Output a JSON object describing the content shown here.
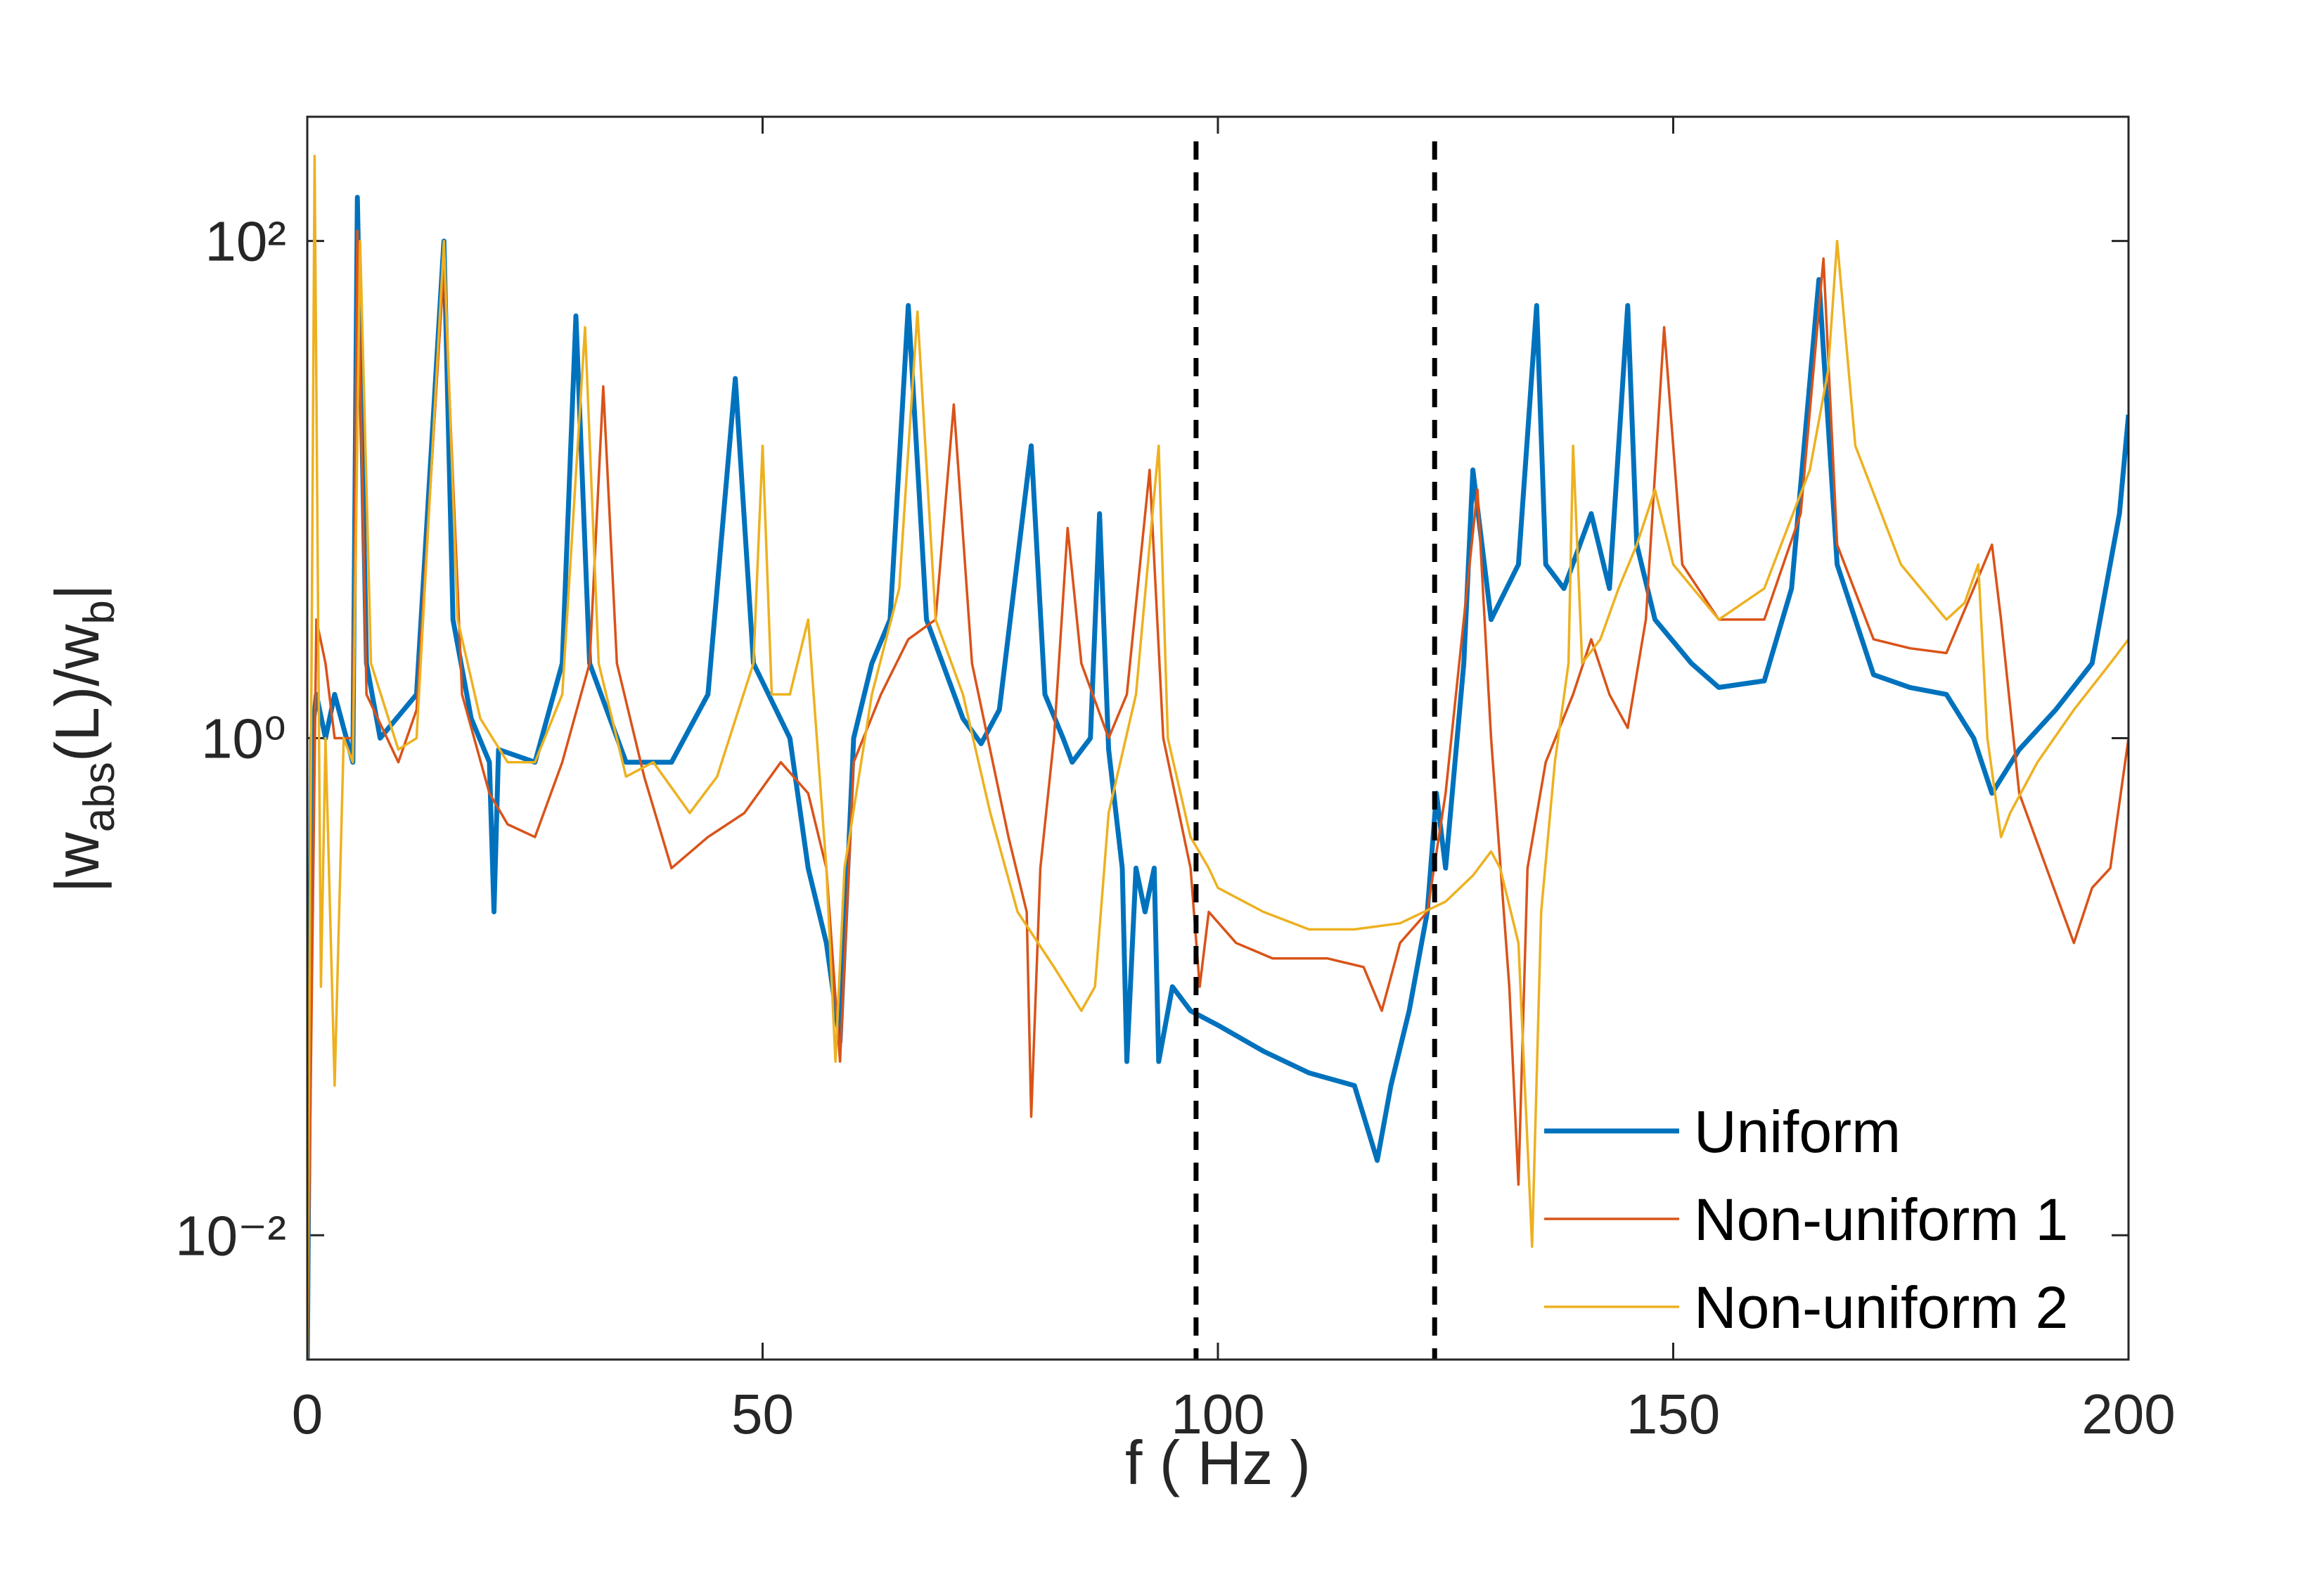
{
  "chart_data": {
    "type": "line",
    "xlabel": "f ( Hz )",
    "ylabel": [
      "|w",
      "abs",
      "(L)/w",
      "b",
      "|"
    ],
    "xlim": [
      0,
      200
    ],
    "ylim": [
      0.003162,
      316.2
    ],
    "log_y": true,
    "xticks": [
      0,
      50,
      100,
      150,
      200
    ],
    "yticks": [
      {
        "value": 0.01,
        "label": "10⁻²"
      },
      {
        "value": 1,
        "label": "10⁰"
      },
      {
        "value": 100,
        "label": "10²"
      }
    ],
    "vlines": [
      97.6,
      123.8
    ],
    "legend": "lower right",
    "series": [
      {
        "name": "Uniform",
        "color": "#0072BD",
        "x": [
          0,
          0.5,
          1,
          2,
          3,
          5,
          5.5,
          6.5,
          8,
          12,
          15,
          16,
          18,
          20,
          20.5,
          21,
          25,
          28,
          29.5,
          31,
          35,
          40,
          44,
          47,
          49,
          53,
          55,
          57,
          58.5,
          60,
          62,
          64,
          66,
          68,
          72,
          74,
          76,
          79.5,
          81,
          83,
          84,
          86,
          87,
          88,
          89.5,
          90,
          91,
          92,
          93,
          93.5,
          95,
          97,
          100,
          105,
          110,
          115,
          117.5,
          119,
          121,
          123,
          124,
          125,
          127,
          128,
          130,
          133,
          135,
          136,
          138,
          141,
          143,
          145,
          146,
          148,
          152,
          155,
          160,
          163,
          166,
          168,
          172,
          176,
          180,
          183,
          185,
          188,
          192,
          196,
          199,
          200
        ],
        "values": [
          0.003,
          1,
          1.5,
          1,
          1.5,
          0.8,
          150,
          2,
          1,
          1.5,
          100,
          3,
          1.2,
          0.8,
          0.2,
          0.9,
          0.8,
          2,
          50,
          2,
          0.8,
          0.8,
          1.5,
          28,
          2,
          1,
          0.3,
          0.15,
          0.06,
          1,
          2,
          3,
          55,
          3,
          1.2,
          0.95,
          1.3,
          15,
          1.5,
          1,
          0.8,
          1,
          8,
          0.9,
          0.3,
          0.05,
          0.3,
          0.2,
          0.3,
          0.05,
          0.1,
          0.08,
          0.07,
          0.055,
          0.045,
          0.04,
          0.02,
          0.04,
          0.08,
          0.2,
          0.6,
          0.3,
          2,
          12,
          3,
          5,
          55,
          5,
          4,
          8,
          4,
          55,
          6,
          3,
          2,
          1.6,
          1.7,
          4,
          70,
          5,
          1.8,
          1.6,
          1.5,
          1,
          0.6,
          0.9,
          1.3,
          2,
          8,
          20
        ]
      },
      {
        "name": "Non-uniform 1",
        "color": "#D95319",
        "x": [
          0,
          1,
          2,
          3,
          5,
          5.5,
          6.5,
          10,
          12,
          15,
          17,
          20,
          22,
          25,
          28,
          31,
          32.5,
          34,
          37,
          40,
          44,
          48,
          52,
          55,
          57,
          58.5,
          60,
          63,
          66,
          69,
          71,
          73,
          77,
          79,
          79.5,
          80.5,
          82,
          83.5,
          85,
          88,
          90,
          92.5,
          94,
          97,
          98,
          99,
          102,
          106,
          112,
          116,
          118,
          120,
          123,
          125,
          127,
          128.5,
          130,
          132,
          133,
          134,
          136,
          139,
          141,
          143,
          145,
          147,
          149,
          151,
          155,
          160,
          164,
          166.5,
          168,
          172,
          176,
          180,
          183,
          185,
          186,
          188,
          191,
          194,
          196,
          198,
          200
        ],
        "values": [
          0.003,
          3,
          2,
          1,
          1,
          110,
          1.5,
          0.8,
          1.3,
          80,
          1.5,
          0.6,
          0.45,
          0.4,
          0.8,
          2,
          26,
          2,
          0.7,
          0.3,
          0.4,
          0.5,
          0.8,
          0.6,
          0.3,
          0.05,
          0.8,
          1.5,
          2.5,
          3,
          22,
          2,
          0.4,
          0.2,
          0.03,
          0.3,
          1,
          7,
          2,
          1,
          1.5,
          12,
          1,
          0.3,
          0.1,
          0.2,
          0.15,
          0.13,
          0.13,
          0.12,
          0.08,
          0.15,
          0.2,
          0.6,
          3,
          10,
          1,
          0.1,
          0.016,
          0.3,
          0.8,
          1.5,
          2.5,
          1.5,
          1.1,
          3,
          45,
          5,
          3,
          3,
          8,
          85,
          6,
          2.5,
          2.3,
          2.2,
          4,
          6,
          3,
          0.6,
          0.3,
          0.15,
          0.25,
          0.3,
          1
        ]
      },
      {
        "name": "Non-uniform 2",
        "color": "#EDB120",
        "x": [
          0,
          0.8,
          1.5,
          2,
          3,
          4,
          5,
          5.8,
          7,
          10,
          12,
          15,
          16.5,
          19,
          22,
          25,
          28,
          30.5,
          32,
          35,
          38,
          42,
          45,
          49,
          50,
          51,
          53,
          55,
          57,
          58,
          59,
          62,
          65,
          67,
          69,
          72,
          75,
          78,
          82,
          85,
          86.5,
          88,
          91,
          93.5,
          94.5,
          97,
          99,
          100,
          105,
          110,
          115,
          120,
          125,
          128,
          130,
          131,
          133,
          134.5,
          135.5,
          137,
          138.5,
          139,
          140,
          142,
          144,
          146,
          148,
          150,
          155,
          160,
          165,
          167,
          168,
          170,
          175,
          180,
          182,
          183.5,
          184.5,
          186,
          187,
          190,
          194,
          198,
          200
        ],
        "values": [
          0.003,
          220,
          0.1,
          1,
          0.04,
          1,
          0.8,
          100,
          2,
          0.9,
          1,
          100,
          3,
          1.2,
          0.8,
          0.8,
          1.5,
          45,
          2,
          0.7,
          0.8,
          0.5,
          0.7,
          2,
          15,
          1.5,
          1.5,
          3,
          0.3,
          0.05,
          0.3,
          1.5,
          4,
          52,
          3,
          1.5,
          0.5,
          0.2,
          0.12,
          0.08,
          0.1,
          0.5,
          1.5,
          15,
          1,
          0.4,
          0.3,
          0.25,
          0.2,
          0.17,
          0.17,
          0.18,
          0.22,
          0.28,
          0.35,
          0.3,
          0.15,
          0.009,
          0.2,
          0.8,
          2,
          15,
          2,
          2.5,
          4,
          6,
          10,
          5,
          3,
          4,
          12,
          30,
          100,
          15,
          5,
          3,
          3.5,
          5,
          1,
          0.4,
          0.5,
          0.8,
          1.3,
          2,
          2.5
        ]
      }
    ]
  }
}
